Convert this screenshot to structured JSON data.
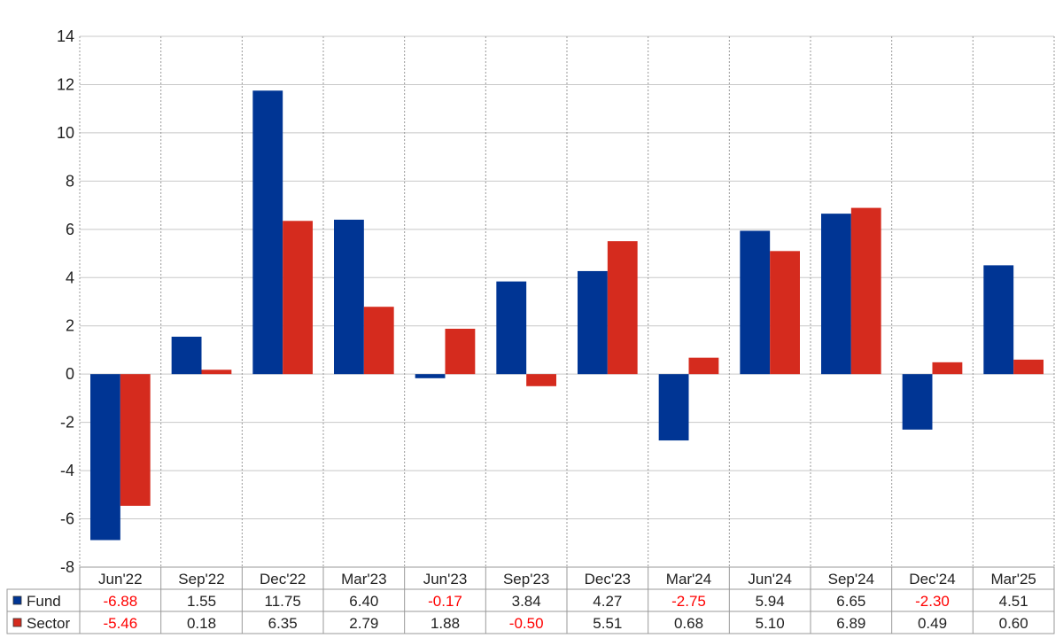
{
  "chart_data": {
    "type": "bar",
    "categories": [
      "Jun'22",
      "Sep'22",
      "Dec'22",
      "Mar'23",
      "Jun'23",
      "Sep'23",
      "Dec'23",
      "Mar'24",
      "Jun'24",
      "Sep'24",
      "Dec'24",
      "Mar'25"
    ],
    "series": [
      {
        "name": "Fund",
        "color": "#003594",
        "values": [
          -6.88,
          1.55,
          11.75,
          6.4,
          -0.17,
          3.84,
          4.27,
          -2.75,
          5.94,
          6.65,
          -2.3,
          4.51
        ],
        "labels": [
          "-6.88",
          "1.55",
          "11.75",
          "6.40",
          "-0.17",
          "3.84",
          "4.27",
          "-2.75",
          "5.94",
          "6.65",
          "-2.30",
          "4.51"
        ]
      },
      {
        "name": "Sector",
        "color": "#d52b1e",
        "values": [
          -5.46,
          0.18,
          6.35,
          2.79,
          1.88,
          -0.5,
          5.51,
          0.68,
          5.1,
          6.89,
          0.49,
          0.6
        ],
        "labels": [
          "-5.46",
          "0.18",
          "6.35",
          "2.79",
          "1.88",
          "-0.50",
          "5.51",
          "0.68",
          "5.10",
          "6.89",
          "0.49",
          "0.60"
        ]
      }
    ],
    "ylim": [
      -8,
      14
    ],
    "yticks": [
      -8,
      -6,
      -4,
      -2,
      0,
      2,
      4,
      6,
      8,
      10,
      12,
      14
    ],
    "title": "",
    "xlabel": "",
    "ylabel": "",
    "grid": true,
    "legend": "data-table-left",
    "negative_label_color": "#ff0000",
    "positive_label_color": "#222222"
  }
}
